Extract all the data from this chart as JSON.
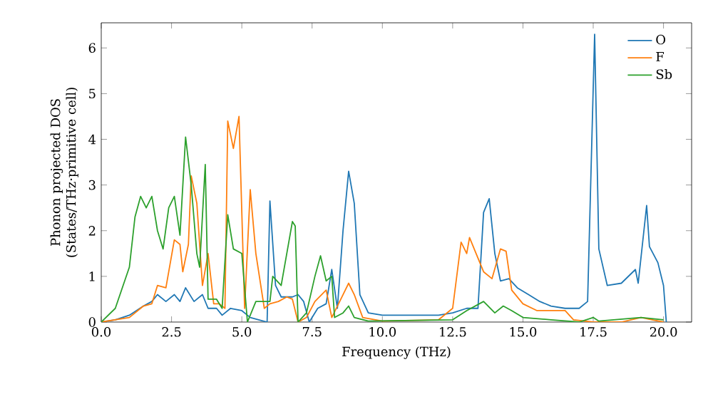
{
  "chart_data": {
    "type": "line",
    "xlabel": "Frequency (THz)",
    "ylabel": "Phonon projected DOS (States/THz·primitive cell)",
    "xlim": [
      0,
      21
    ],
    "ylim": [
      0,
      6.55
    ],
    "xticks": [
      {
        "value": 0,
        "label": "0.0"
      },
      {
        "value": 2.5,
        "label": "2.5"
      },
      {
        "value": 5,
        "label": "5.0"
      },
      {
        "value": 7.5,
        "label": "7.5"
      },
      {
        "value": 10,
        "label": "10.0"
      },
      {
        "value": 12.5,
        "label": "12.5"
      },
      {
        "value": 15,
        "label": "15.0"
      },
      {
        "value": 17.5,
        "label": "17.5"
      },
      {
        "value": 20,
        "label": "20.0"
      }
    ],
    "yticks": [
      0,
      1,
      2,
      3,
      4,
      5,
      6
    ],
    "legend": "top right",
    "grid": false,
    "marker": "none",
    "line_style": "solid",
    "series": [
      {
        "name": "O",
        "color": "#1f77b4",
        "x": [
          0,
          0.5,
          1.0,
          1.5,
          1.8,
          2.0,
          2.3,
          2.6,
          2.8,
          3.0,
          3.3,
          3.6,
          3.8,
          4.1,
          4.3,
          4.6,
          5.0,
          5.3,
          5.6,
          5.9,
          6.0,
          6.2,
          6.4,
          6.8,
          7.0,
          7.2,
          7.4,
          7.7,
          8.0,
          8.2,
          8.4,
          8.6,
          8.8,
          9.0,
          9.2,
          9.5,
          10,
          12,
          12.5,
          13.0,
          13.4,
          13.6,
          13.8,
          14.0,
          14.2,
          14.5,
          14.8,
          15.2,
          15.6,
          16,
          16.5,
          17.0,
          17.3,
          17.55,
          17.7,
          18.0,
          18.5,
          19.0,
          19.1,
          19.4,
          19.5,
          19.8,
          20.0,
          20.1
        ],
        "values": [
          0,
          0.05,
          0.15,
          0.35,
          0.45,
          0.6,
          0.45,
          0.6,
          0.45,
          0.75,
          0.45,
          0.6,
          0.3,
          0.3,
          0.15,
          0.3,
          0.25,
          0.1,
          0.05,
          0,
          2.65,
          0.8,
          0.55,
          0.55,
          0.6,
          0.45,
          0,
          0.3,
          0.4,
          1.15,
          0.3,
          2.0,
          3.3,
          2.6,
          0.6,
          0.2,
          0.15,
          0.15,
          0.2,
          0.3,
          0.3,
          2.4,
          2.7,
          1.5,
          0.9,
          0.95,
          0.75,
          0.6,
          0.45,
          0.35,
          0.3,
          0.3,
          0.45,
          6.3,
          1.6,
          0.8,
          0.85,
          1.15,
          0.85,
          2.55,
          1.65,
          1.3,
          0.8,
          0
        ]
      },
      {
        "name": "F",
        "color": "#ff7f0e",
        "x": [
          0,
          1.0,
          1.5,
          1.8,
          2.0,
          2.3,
          2.6,
          2.8,
          2.9,
          3.1,
          3.2,
          3.4,
          3.6,
          3.8,
          4.0,
          4.2,
          4.4,
          4.5,
          4.7,
          4.9,
          5.1,
          5.3,
          5.5,
          5.8,
          6.0,
          6.3,
          6.6,
          6.8,
          7.0,
          7.3,
          7.6,
          8.0,
          8.2,
          8.6,
          8.8,
          9.0,
          9.3,
          10,
          12,
          12.5,
          12.8,
          13.0,
          13.1,
          13.3,
          13.6,
          13.9,
          14.2,
          14.4,
          14.6,
          15,
          15.5,
          16.5,
          16.8,
          17.5,
          18.5,
          19.2,
          19.6,
          20
        ],
        "values": [
          0,
          0.1,
          0.35,
          0.4,
          0.8,
          0.75,
          1.8,
          1.7,
          1.1,
          1.7,
          3.2,
          2.6,
          0.8,
          1.5,
          0.4,
          0.4,
          0.3,
          4.4,
          3.8,
          4.5,
          0.3,
          2.9,
          1.5,
          0.3,
          0.4,
          0.45,
          0.55,
          0.5,
          0,
          0.1,
          0.45,
          0.7,
          0.1,
          0.6,
          0.85,
          0.6,
          0.1,
          0.02,
          0.05,
          0.3,
          1.75,
          1.5,
          1.85,
          1.55,
          1.1,
          0.95,
          1.6,
          1.55,
          0.7,
          0.4,
          0.25,
          0.25,
          0.05,
          0,
          0,
          0.1,
          0.05,
          0
        ]
      },
      {
        "name": "Sb",
        "color": "#2ca02c",
        "x": [
          0,
          0.5,
          1.0,
          1.2,
          1.4,
          1.6,
          1.8,
          2.0,
          2.2,
          2.4,
          2.6,
          2.8,
          3.0,
          3.2,
          3.4,
          3.5,
          3.7,
          3.8,
          4.1,
          4.3,
          4.5,
          4.7,
          5.0,
          5.2,
          5.5,
          6.0,
          6.1,
          6.4,
          6.8,
          6.9,
          7.0,
          7.3,
          7.6,
          7.8,
          8.0,
          8.2,
          8.3,
          8.6,
          8.8,
          9.0,
          9.5,
          12.5,
          13.0,
          13.6,
          14.0,
          14.3,
          14.6,
          15,
          16,
          17.0,
          17.5,
          17.7,
          19.2,
          20
        ],
        "values": [
          0,
          0.3,
          1.2,
          2.3,
          2.75,
          2.5,
          2.75,
          2.0,
          1.6,
          2.5,
          2.75,
          1.9,
          4.05,
          3.0,
          1.5,
          1.2,
          3.45,
          0.5,
          0.5,
          0.3,
          2.35,
          1.6,
          1.5,
          0,
          0.45,
          0.45,
          1.0,
          0.8,
          2.2,
          2.1,
          0,
          0.2,
          1.0,
          1.45,
          0.9,
          1.0,
          0.1,
          0.2,
          0.35,
          0.1,
          0.02,
          0.05,
          0.25,
          0.45,
          0.2,
          0.35,
          0.25,
          0.1,
          0.05,
          0,
          0.1,
          0.02,
          0.1,
          0.05
        ]
      }
    ]
  }
}
